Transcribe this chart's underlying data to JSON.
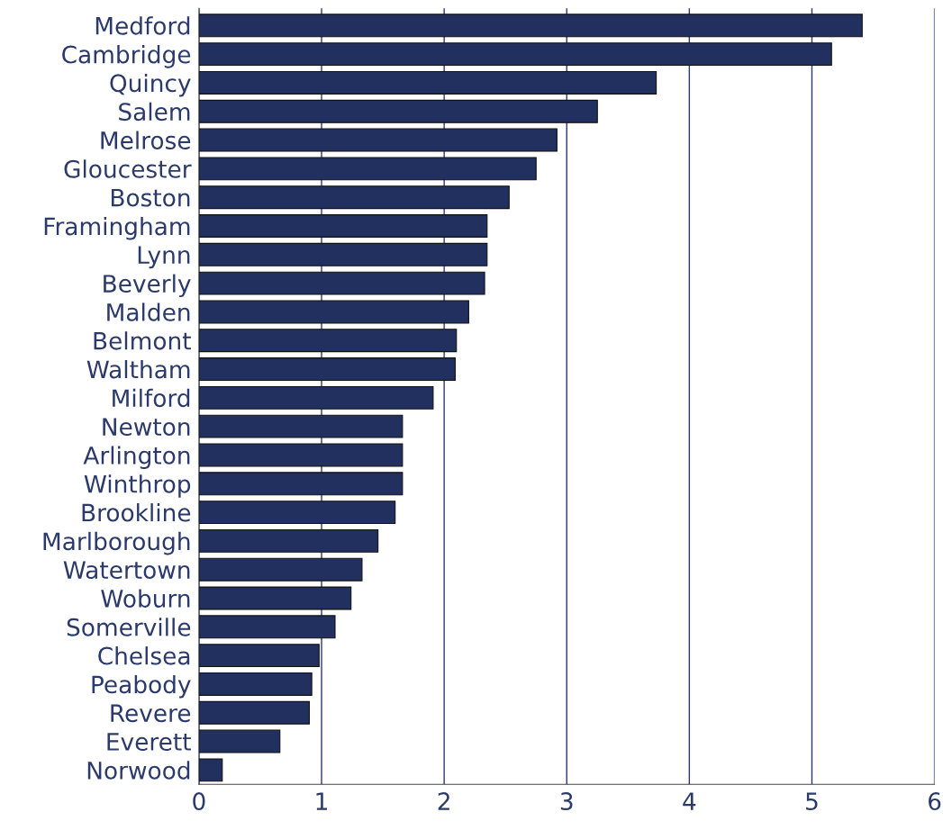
{
  "chart_data": {
    "type": "bar",
    "orientation": "horizontal",
    "categories": [
      "Medford",
      "Cambridge",
      "Quincy",
      "Salem",
      "Melrose",
      "Gloucester",
      "Boston",
      "Framingham",
      "Lynn",
      "Beverly",
      "Malden",
      "Belmont",
      "Waltham",
      "Milford",
      "Newton",
      "Arlington",
      "Winthrop",
      "Brookline",
      "Marlborough",
      "Watertown",
      "Woburn",
      "Somerville",
      "Chelsea",
      "Peabody",
      "Revere",
      "Everett",
      "Norwood"
    ],
    "values": [
      5.41,
      5.16,
      3.73,
      3.25,
      2.92,
      2.75,
      2.53,
      2.35,
      2.35,
      2.33,
      2.2,
      2.1,
      2.09,
      1.91,
      1.66,
      1.66,
      1.66,
      1.6,
      1.46,
      1.33,
      1.24,
      1.11,
      0.98,
      0.92,
      0.9,
      0.66,
      0.19
    ],
    "color": "#22305f",
    "xlim": [
      0,
      6
    ],
    "xticks": [
      0,
      1,
      2,
      3,
      4,
      5,
      6
    ],
    "grid": "x",
    "legend": false
  }
}
